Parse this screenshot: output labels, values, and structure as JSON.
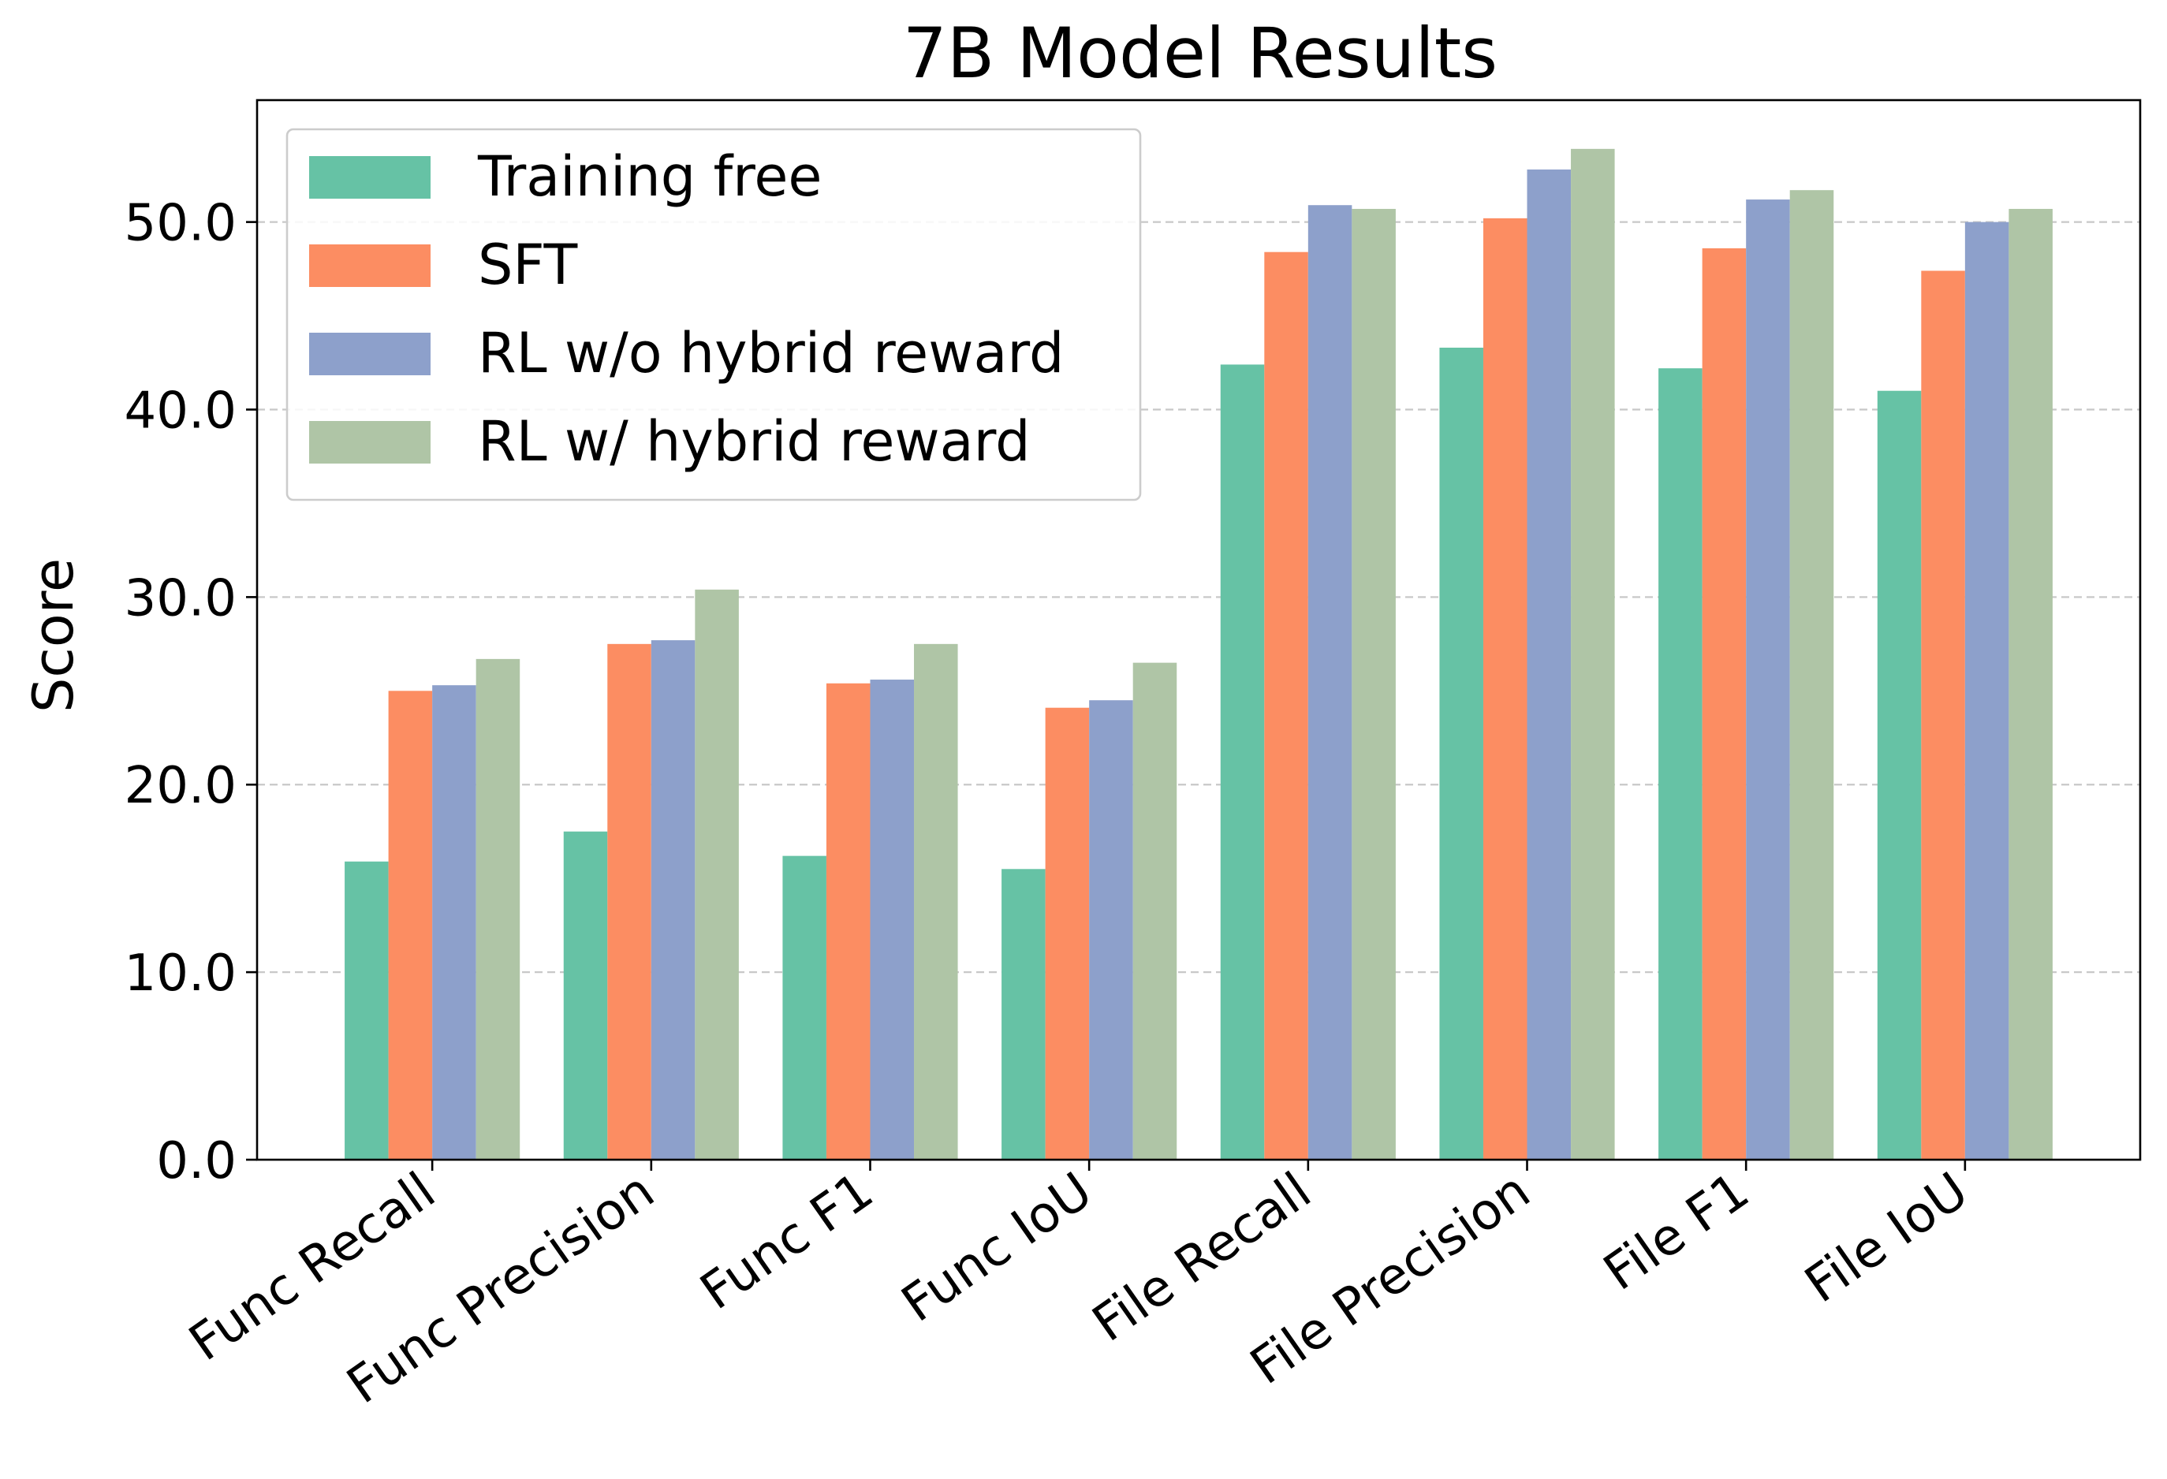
{
  "chart_data": {
    "type": "bar",
    "title": "7B Model Results",
    "xlabel": "",
    "ylabel": "Score",
    "ylim": [
      0,
      56.5
    ],
    "yticks": [
      "0.0",
      "10.0",
      "20.0",
      "30.0",
      "40.0",
      "50.0"
    ],
    "ytick_values": [
      0,
      10,
      20,
      30,
      40,
      50
    ],
    "grid": "horizontal dashed",
    "legend_position": "top-left",
    "categories": [
      "Func Recall",
      "Func Precision",
      "Func F1",
      "Func IoU",
      "File Recall",
      "File Precision",
      "File F1",
      "File IoU"
    ],
    "series": [
      {
        "name": "Training free",
        "color": "#66c2a5",
        "values": [
          15.9,
          17.5,
          16.2,
          15.5,
          42.4,
          43.3,
          42.2,
          41.0
        ]
      },
      {
        "name": "SFT",
        "color": "#fc8d62",
        "values": [
          25.0,
          27.5,
          25.4,
          24.1,
          48.4,
          50.2,
          48.6,
          47.4
        ]
      },
      {
        "name": "RL w/o hybrid reward",
        "color": "#8da0cb",
        "values": [
          25.3,
          27.7,
          25.6,
          24.5,
          50.9,
          52.8,
          51.2,
          50.0
        ]
      },
      {
        "name": "RL w/ hybrid reward",
        "color": "#afc5a6",
        "values": [
          26.7,
          30.4,
          27.5,
          26.5,
          50.7,
          53.9,
          51.7,
          50.7
        ]
      }
    ]
  }
}
